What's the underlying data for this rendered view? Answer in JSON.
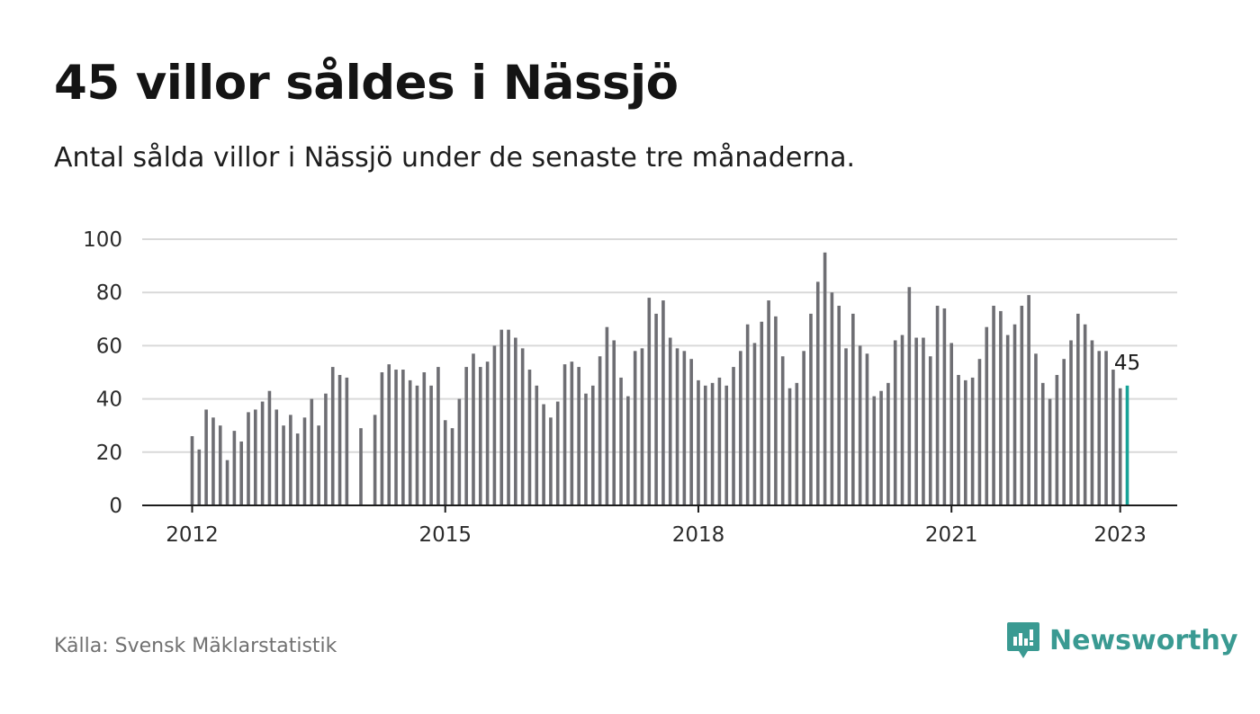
{
  "title": "45 villor såldes i Nässjö",
  "subtitle": "Antal sålda villor i Nässjö under de senaste tre månaderna.",
  "source": "Källa: Svensk Mäklarstatistik",
  "brand": {
    "name": "Newsworthy",
    "icon": "newsworthy-logo-icon",
    "color": "#3a9a92"
  },
  "colors": {
    "bar": "#6e6e73",
    "highlight": "#17a398",
    "grid": "#d9d9d9",
    "axis": "#1c1c1c"
  },
  "chart_data": {
    "type": "bar",
    "title": "45 villor såldes i Nässjö",
    "subtitle": "Antal sålda villor i Nässjö under de senaste tre månaderna.",
    "xlabel": "",
    "ylabel": "",
    "ylim": [
      0,
      100
    ],
    "yticks": [
      0,
      20,
      40,
      60,
      80,
      100
    ],
    "xticks": [
      "2012",
      "2015",
      "2018",
      "2021",
      "2023"
    ],
    "grid": true,
    "x_start": "2012-01",
    "interval": "month",
    "values": [
      26,
      21,
      36,
      33,
      30,
      17,
      28,
      24,
      35,
      36,
      39,
      43,
      36,
      30,
      34,
      27,
      33,
      40,
      30,
      42,
      52,
      49,
      48,
      null,
      29,
      null,
      34,
      50,
      53,
      51,
      51,
      47,
      45,
      50,
      45,
      52,
      32,
      29,
      40,
      52,
      57,
      52,
      54,
      60,
      66,
      66,
      63,
      59,
      51,
      45,
      38,
      33,
      39,
      53,
      54,
      52,
      42,
      45,
      56,
      67,
      62,
      48,
      41,
      58,
      59,
      78,
      72,
      77,
      63,
      59,
      58,
      55,
      47,
      45,
      46,
      48,
      45,
      52,
      58,
      68,
      61,
      69,
      77,
      71,
      56,
      44,
      46,
      58,
      72,
      84,
      95,
      80,
      75,
      59,
      72,
      60,
      57,
      41,
      43,
      46,
      62,
      64,
      82,
      63,
      63,
      56,
      75,
      74,
      61,
      49,
      47,
      48,
      55,
      67,
      75,
      73,
      64,
      68,
      75,
      79,
      57,
      46,
      40,
      49,
      55,
      62,
      72,
      68,
      62,
      58,
      58,
      51,
      44,
      45
    ],
    "highlight_label": "45",
    "highlight_index": 133
  }
}
